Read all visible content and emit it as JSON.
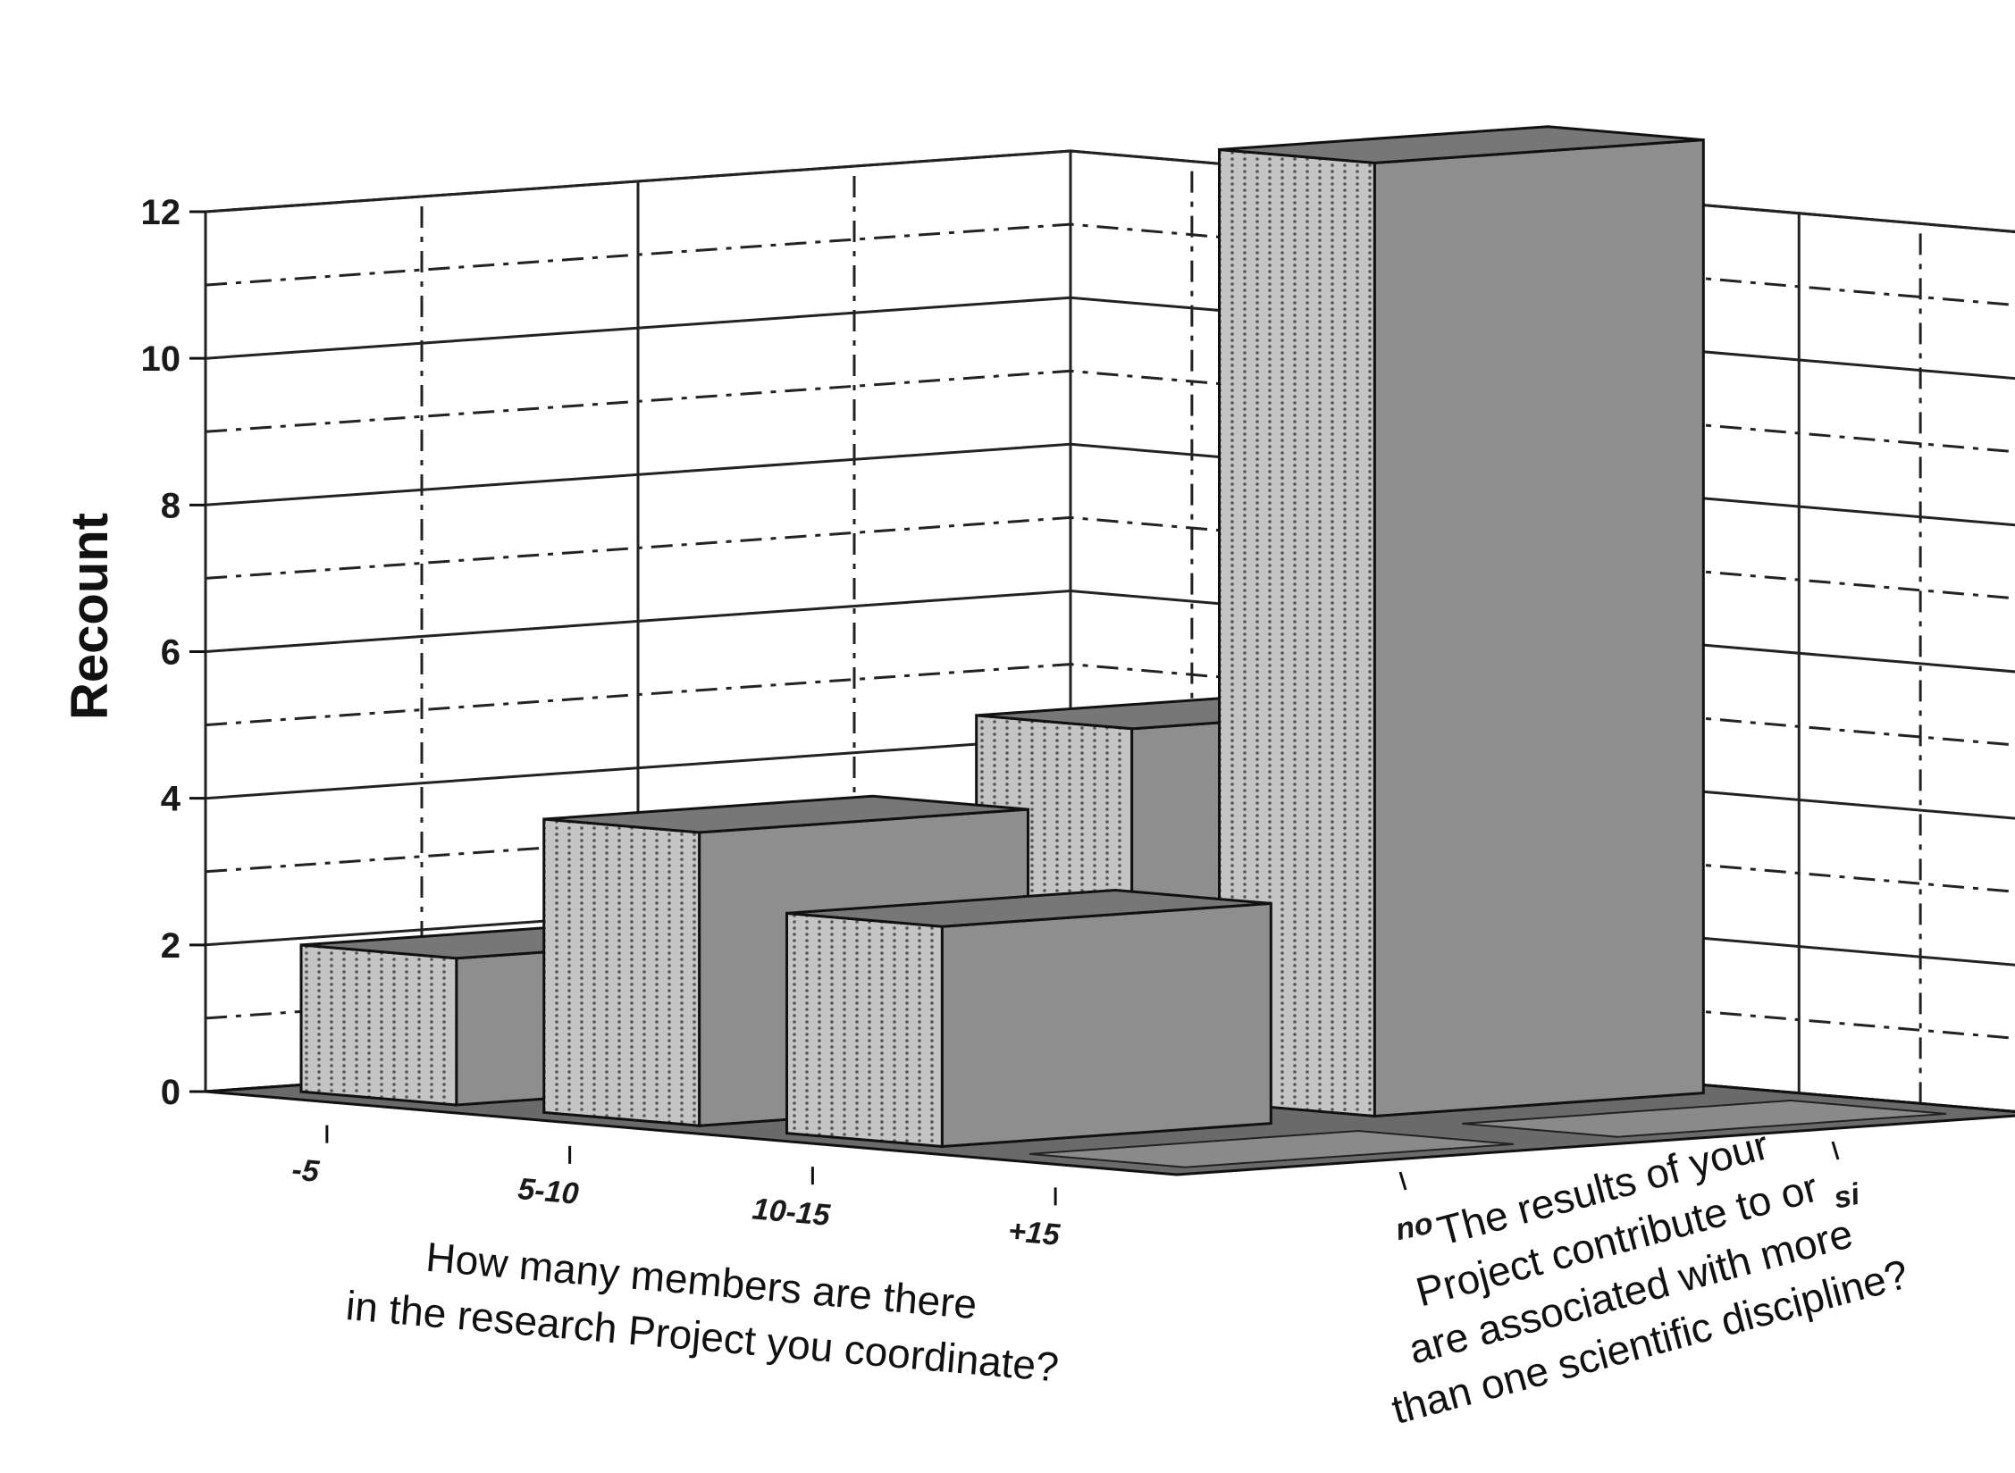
{
  "chart_data": {
    "type": "bar",
    "subtype": "3d-bar",
    "title": "",
    "ylabel": "Recount",
    "ylim": [
      0,
      12
    ],
    "yticks": [
      0,
      2,
      4,
      6,
      8,
      10,
      12
    ],
    "x_categories": [
      "-5",
      "5-10",
      "10-15",
      "+15"
    ],
    "x_axis_title": [
      "How many members are there",
      "in the research Project you coordinate?"
    ],
    "z_categories": [
      "no",
      "si"
    ],
    "z_axis_title": [
      "The results of your",
      "Project contribute to or",
      "are associated with more",
      "than one scientific discipline?"
    ],
    "series": [
      {
        "name": "no",
        "values": [
          2,
          4,
          3,
          0
        ]
      },
      {
        "name": "si",
        "values": [
          0,
          5,
          13,
          0
        ]
      }
    ],
    "grid": true,
    "colors": {
      "bar_front": "#c4c4c4",
      "bar_side": "#8e8e8e",
      "bar_top": "#777777",
      "floor": "#6a6a6a"
    }
  }
}
